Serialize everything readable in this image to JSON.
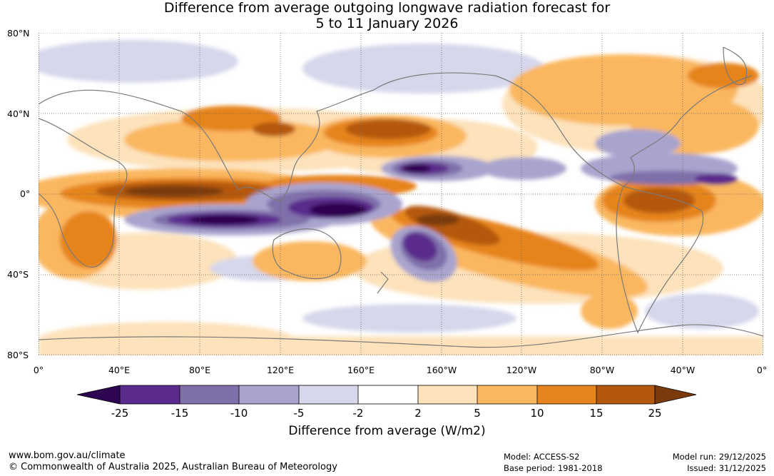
{
  "title": {
    "line1": "Difference from average outgoing longwave radiation forecast for",
    "line2": "5 to 11 January 2026"
  },
  "map": {
    "lat_labels": [
      "80°N",
      "40°N",
      "0°",
      "40°S",
      "80°S"
    ],
    "lon_labels": [
      "0°",
      "40°E",
      "80°E",
      "120°E",
      "160°E",
      "160°W",
      "120°W",
      "80°W",
      "40°W",
      "0°"
    ],
    "colors": {
      "neg25": "#2d0550",
      "neg15": "#5a2a8c",
      "neg10": "#8070aa",
      "neg5": "#a9a4ce",
      "neg2": "#d6d7eb",
      "zero": "#ffffff",
      "pos2": "#fde2bb",
      "pos5": "#fab75f",
      "pos10": "#e6841d",
      "pos15": "#b5580e",
      "pos25": "#7a3a0b",
      "coast": "#7a7a7a",
      "grid": "#666666"
    }
  },
  "colorbar": {
    "ticks": [
      "-25",
      "-15",
      "-10",
      "-5",
      "-2",
      "2",
      "5",
      "10",
      "15",
      "25"
    ],
    "title": "Difference from average (W/m2)"
  },
  "footer": {
    "website": "www.bom.gov.au/climate",
    "copyright": "© Commonwealth of Australia 2025, Australian Bureau of Meteorology",
    "model": "Model: ACCESS-S2",
    "base_period": "Base period: 1981-2018",
    "model_run": "Model run: 29/12/2025",
    "issued": "Issued: 31/12/2025"
  }
}
